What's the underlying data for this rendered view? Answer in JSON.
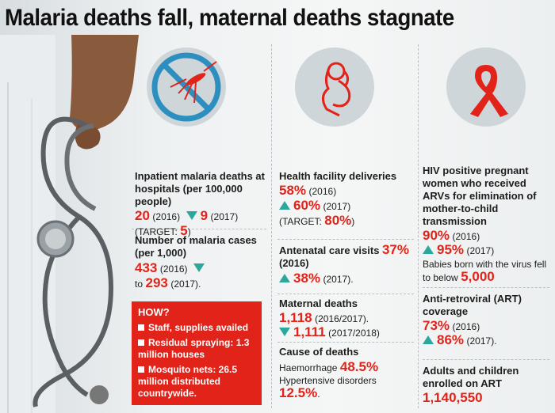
{
  "title": "Malaria deaths fall, maternal deaths stagnate",
  "colors": {
    "accent_red": "#e2231a",
    "teal": "#2ba89b",
    "skin": "#8a5a3c"
  },
  "icons": [
    "no-mosquito-icon",
    "pregnant-woman-icon",
    "awareness-ribbon-icon"
  ],
  "malaria": {
    "inpatient": {
      "label": "Inpatient malaria deaths  at hospitals (per 100,000 people)",
      "v2016": "20",
      "y2016": "(2016)",
      "v2017": "9",
      "y2017": "(2017)",
      "target_label": "(TARGET:",
      "target_value": "5",
      "target_close": ")"
    },
    "cases": {
      "label": "Number of malaria cases (per 1,000)",
      "v2016": "433",
      "y2016": "(2016)",
      "to": "to",
      "v2017": "293",
      "y2017": "(2017)."
    },
    "how": {
      "heading": "HOW?",
      "items": [
        "Staff, supplies availed",
        "Residual spraying: 1.3 million houses",
        "Mosquito nets: 26.5 million distributed countrywide."
      ]
    }
  },
  "maternal": {
    "deliveries": {
      "label": "Health facility deliveries",
      "v2016": "58%",
      "y2016": "(2016)",
      "v2017": "60%",
      "y2017": "(2017)",
      "target_label": "(TARGET:",
      "target_value": "80%",
      "target_close": ")"
    },
    "antenatal": {
      "label": "Antenatal care visits",
      "v2016": "37%",
      "y2016": "(2016)",
      "v2017": "38%",
      "y2017": "(2017)."
    },
    "deaths": {
      "label": "Maternal deaths",
      "v1": "1,118",
      "y1": "(2016/2017).",
      "v2": "1,111",
      "y2": "(2017/2018)"
    },
    "cause": {
      "label": "Cause of deaths",
      "c1": "Haemorrhage",
      "c1v": "48.5%",
      "c2": "Hypertensive disorders",
      "c2v": "12.5%",
      "c2end": "."
    }
  },
  "hiv": {
    "pmtct": {
      "label": "HIV positive pregnant women who received ARVs for elimination of mother-to-child transmission",
      "v2016": "90%",
      "y2016": "(2016)",
      "v2017": "95%",
      "y2017": "(2017)",
      "babies": "Babies born with the virus fell to below",
      "babies_v": "5,000"
    },
    "art": {
      "label": "Anti-retroviral (ART) coverage",
      "v2016": "73%",
      "y2016": "(2016)",
      "v2017": "86%",
      "y2017": "(2017)."
    },
    "enrolled": {
      "label": "Adults and children enrolled on ART",
      "value": "1,140,550"
    }
  }
}
